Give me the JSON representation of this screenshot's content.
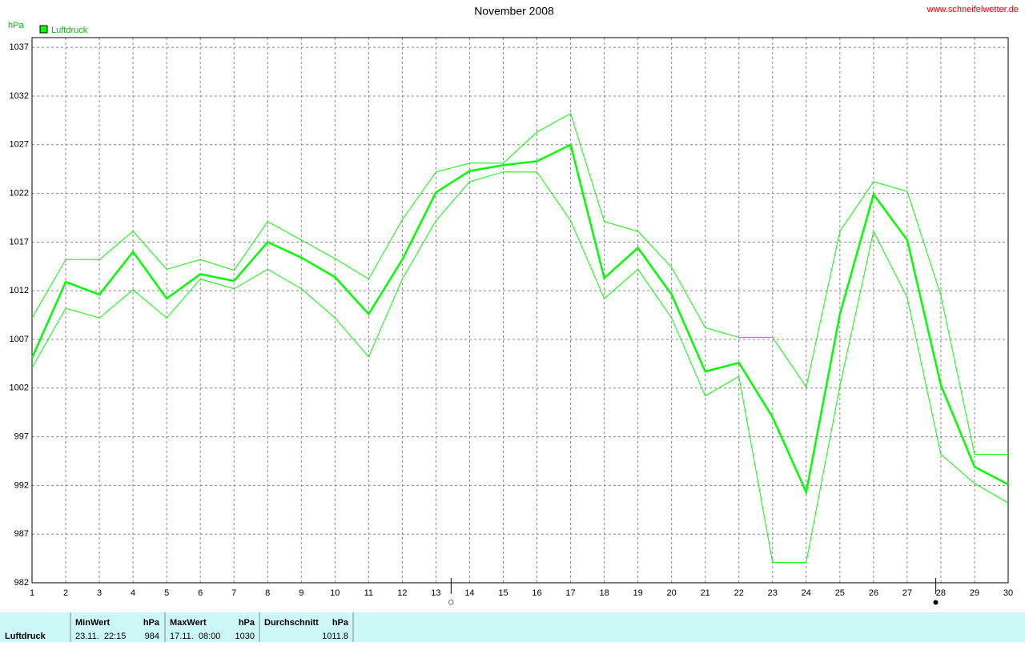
{
  "chart_data": {
    "type": "line",
    "title": "November 2008",
    "source": "www.schneifelwetter.de",
    "y_label": "hPa",
    "x": [
      1,
      2,
      3,
      4,
      5,
      6,
      7,
      8,
      9,
      10,
      11,
      12,
      13,
      14,
      15,
      16,
      17,
      18,
      19,
      20,
      21,
      22,
      23,
      24,
      25,
      26,
      27,
      28,
      29,
      30
    ],
    "xlim": [
      1,
      30
    ],
    "xticks": [
      1,
      2,
      3,
      4,
      5,
      6,
      7,
      8,
      9,
      10,
      11,
      12,
      13,
      14,
      15,
      16,
      17,
      18,
      19,
      20,
      21,
      22,
      23,
      24,
      25,
      26,
      27,
      28,
      29,
      30
    ],
    "ylim": [
      982,
      1038
    ],
    "yticks": [
      982,
      987,
      992,
      997,
      1002,
      1007,
      1012,
      1017,
      1022,
      1027,
      1032,
      1037
    ],
    "grid": true,
    "legend": "top-left",
    "series": [
      {
        "name": "Luftdruck",
        "color": "#00ff00",
        "line_width": 2.5,
        "values": [
          1005.1,
          1012.9,
          1011.6,
          1016.0,
          1011.2,
          1013.7,
          1013.0,
          1017.0,
          1015.4,
          1013.4,
          1009.6,
          1015.2,
          1022.1,
          1024.3,
          1024.9,
          1025.3,
          1027.0,
          1013.3,
          1016.4,
          1011.6,
          1003.7,
          1004.6,
          999.0,
          991.3,
          1009.6,
          1021.9,
          1017.2,
          1002.3,
          993.9,
          992.1
        ]
      },
      {
        "color": "#00ff00",
        "line_width": 1,
        "values": [
          1009.2,
          1015.2,
          1015.2,
          1018.1,
          1014.2,
          1015.2,
          1014.1,
          1019.1,
          1017.2,
          1015.3,
          1013.2,
          1019.3,
          1024.2,
          1025.1,
          1025.1,
          1028.3,
          1030.2,
          1019.1,
          1018.1,
          1014.4,
          1008.2,
          1007.2,
          1007.2,
          1002.1,
          1018.1,
          1023.2,
          1022.2,
          1011.5,
          995.2,
          995.2
        ]
      },
      {
        "color": "#00ff00",
        "line_width": 1,
        "values": [
          1004.1,
          1010.2,
          1009.2,
          1012.1,
          1009.2,
          1013.2,
          1012.2,
          1014.2,
          1012.2,
          1009.2,
          1005.2,
          1013.2,
          1019.2,
          1023.2,
          1024.2,
          1024.2,
          1019.2,
          1011.2,
          1014.2,
          1009.2,
          1001.2,
          1003.2,
          984.1,
          984.1,
          1002.2,
          1018.1,
          1011.3,
          995.2,
          992.2,
          990.2
        ]
      }
    ],
    "annotations": [
      {
        "x": 13.45,
        "symbol": "○"
      },
      {
        "x": 27.85,
        "symbol": "●"
      }
    ]
  },
  "stats": {
    "label": "Luftdruck",
    "columns": [
      {
        "title": "MinWert",
        "unit": "hPa",
        "when": "23.11.  22:15",
        "value": "984"
      },
      {
        "title": "MaxWert",
        "unit": "hPa",
        "when": "17.11.  08:00",
        "value": "1030"
      },
      {
        "title": "Durchschnitt",
        "unit": "hPa",
        "value": "1011.8"
      }
    ]
  }
}
